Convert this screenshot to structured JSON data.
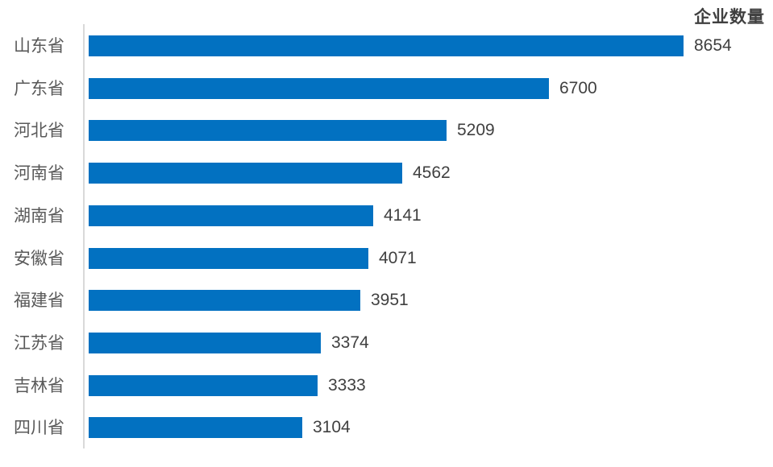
{
  "chart_data": {
    "type": "bar",
    "orientation": "horizontal",
    "title": "企业数量",
    "categories": [
      "山东省",
      "广东省",
      "河北省",
      "河南省",
      "湖南省",
      "安徽省",
      "福建省",
      "江苏省",
      "吉林省",
      "四川省"
    ],
    "values": [
      8654,
      6700,
      5209,
      4562,
      4141,
      4071,
      3951,
      3374,
      3333,
      3104
    ],
    "xlim": [
      0,
      8654
    ],
    "grid": false,
    "legend_position": "top-right",
    "data_labels": true,
    "colors": {
      "bar": "#0271c1",
      "axis_line": "#d9d9d9",
      "category_label": "#595959",
      "value_label": "#404040",
      "title": "#404040",
      "background": "#ffffff"
    }
  }
}
